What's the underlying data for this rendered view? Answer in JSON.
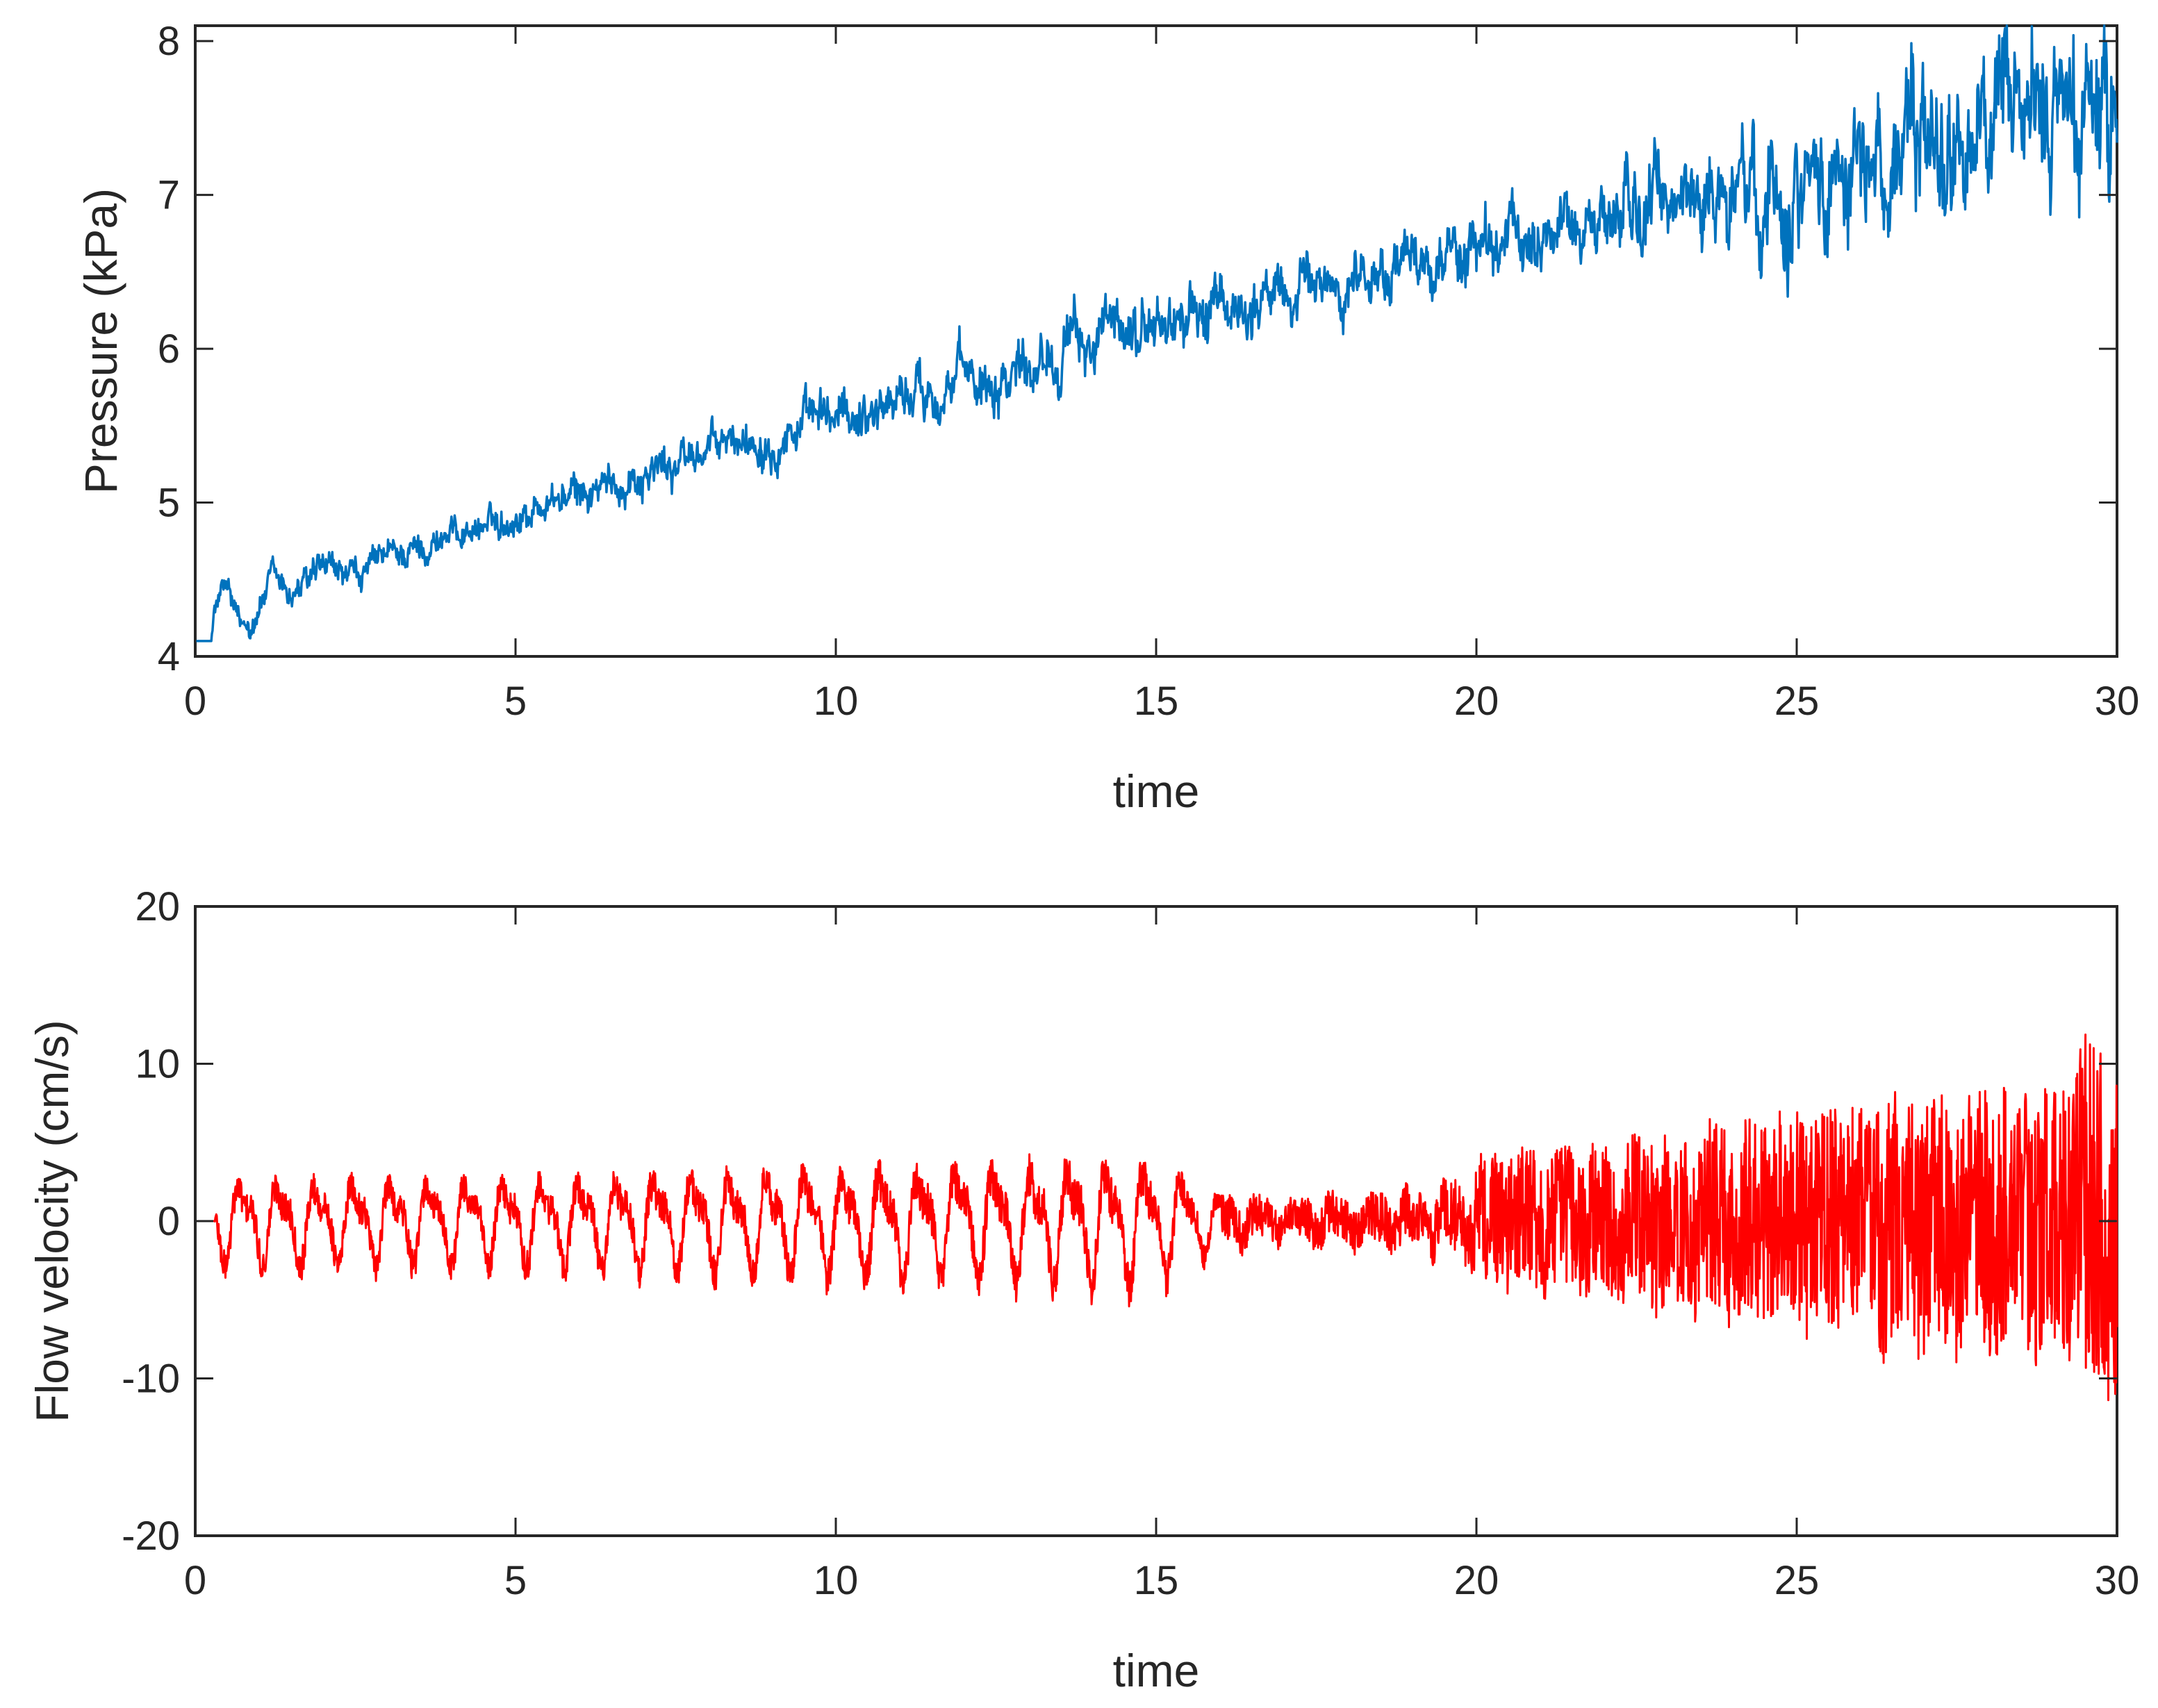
{
  "chart_data": [
    {
      "type": "line",
      "xlabel": "time",
      "ylabel": "Pressure (kPa)",
      "xlim": [
        0,
        30
      ],
      "ylim": [
        4,
        8.1
      ],
      "x_ticks": [
        0,
        5,
        10,
        15,
        20,
        25,
        30
      ],
      "y_ticks": [
        4,
        5,
        6,
        7,
        8
      ],
      "x_tick_labels": [
        "0",
        "5",
        "10",
        "15",
        "20",
        "25",
        "30"
      ],
      "y_tick_labels": [
        "4",
        "5",
        "6",
        "7",
        "8"
      ],
      "grid": false,
      "series": [
        {
          "color": "#0072BD",
          "x": [
            0,
            0.25,
            0.3,
            0.5,
            0.7,
            0.9,
            1.2,
            1.5,
            2,
            2.5,
            3,
            3.5,
            4,
            4.5,
            5,
            5.5,
            6,
            6.5,
            7,
            7.5,
            8,
            8.5,
            9,
            9.5,
            10,
            10.5,
            11,
            11.5,
            12,
            12.5,
            13,
            13.5,
            14,
            14.5,
            15,
            15.5,
            16,
            16.5,
            17,
            17.5,
            18,
            18.5,
            19,
            19.5,
            20,
            20.5,
            21,
            21.5,
            22,
            22.5,
            23,
            23.5,
            24,
            24.5,
            25,
            25.5,
            26,
            26.5,
            27,
            27.5,
            28,
            28.5,
            29,
            29.5,
            30
          ],
          "y": [
            4.1,
            4.1,
            4.3,
            4.45,
            4.15,
            4.25,
            4.5,
            4.4,
            4.55,
            4.5,
            4.65,
            4.7,
            4.8,
            4.85,
            4.9,
            5.0,
            5.05,
            5.1,
            5.2,
            5.25,
            5.35,
            5.4,
            5.45,
            5.5,
            5.55,
            5.6,
            5.7,
            5.75,
            5.8,
            5.85,
            5.95,
            6.0,
            6.05,
            6.1,
            6.15,
            6.2,
            6.25,
            6.3,
            6.35,
            6.4,
            6.45,
            6.5,
            6.55,
            6.6,
            6.65,
            6.7,
            6.75,
            6.8,
            6.85,
            6.9,
            6.95,
            7.0,
            7.0,
            7.05,
            7.1,
            7.15,
            7.2,
            7.25,
            7.3,
            7.35,
            7.4,
            7.45,
            7.5,
            7.55,
            7.5
          ],
          "noise_amplitude": [
            0,
            0,
            0.08,
            0.08,
            0.08,
            0.08,
            0.08,
            0.08,
            0.08,
            0.08,
            0.08,
            0.08,
            0.08,
            0.08,
            0.08,
            0.09,
            0.09,
            0.1,
            0.1,
            0.1,
            0.1,
            0.1,
            0.12,
            0.12,
            0.12,
            0.13,
            0.13,
            0.14,
            0.14,
            0.15,
            0.15,
            0.15,
            0.15,
            0.15,
            0.15,
            0.15,
            0.15,
            0.15,
            0.15,
            0.15,
            0.15,
            0.15,
            0.15,
            0.16,
            0.16,
            0.17,
            0.18,
            0.19,
            0.2,
            0.22,
            0.24,
            0.26,
            0.28,
            0.3,
            0.3,
            0.32,
            0.34,
            0.35,
            0.35,
            0.35,
            0.36,
            0.36,
            0.38,
            0.4,
            0.4
          ]
        }
      ]
    },
    {
      "type": "line",
      "xlabel": "time",
      "ylabel": "Flow velocity (cm/s)",
      "xlim": [
        0,
        30
      ],
      "ylim": [
        -20,
        20
      ],
      "x_ticks": [
        0,
        5,
        10,
        15,
        20,
        25,
        30
      ],
      "y_ticks": [
        -20,
        -10,
        0,
        10,
        20
      ],
      "x_tick_labels": [
        "0",
        "5",
        "10",
        "15",
        "20",
        "25",
        "30"
      ],
      "y_tick_labels": [
        "-20",
        "-10",
        "0",
        "10",
        "20"
      ],
      "grid": false,
      "series": [
        {
          "color": "#FF0000",
          "x": [
            0,
            0.3,
            0.35,
            1,
            3,
            5,
            7,
            9,
            11,
            13,
            15,
            16,
            17,
            18,
            19,
            19.5,
            20,
            21,
            22,
            23,
            24,
            25,
            26,
            27,
            28,
            29,
            29.5,
            30
          ],
          "amplitude": [
            0,
            0,
            5,
            5,
            5,
            5,
            5.5,
            6,
            6.5,
            7,
            7,
            3,
            2.5,
            3,
            3.5,
            4,
            6,
            6.5,
            7,
            8,
            9,
            10,
            11,
            12,
            12,
            12,
            16,
            16
          ],
          "mean": 0
        }
      ]
    }
  ]
}
